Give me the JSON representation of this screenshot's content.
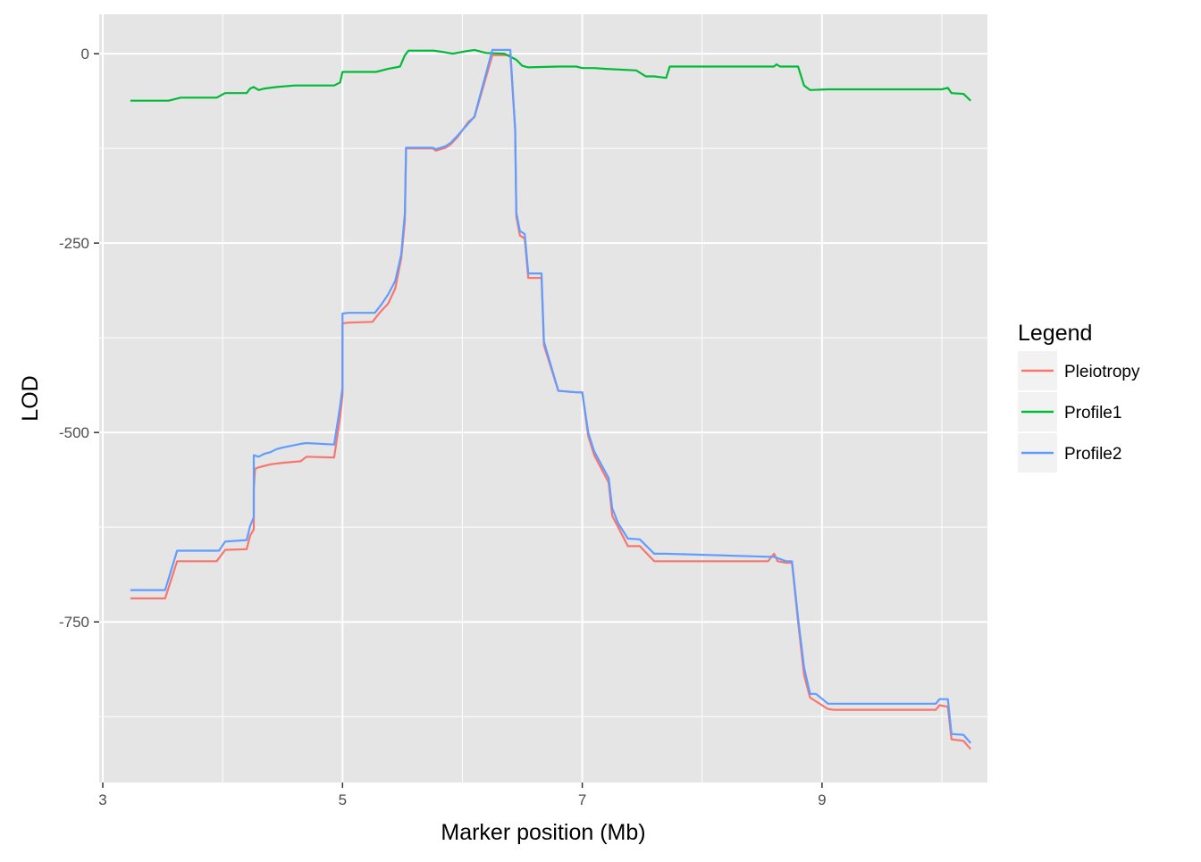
{
  "chart_data": {
    "type": "line",
    "title": "",
    "xlabel": "Marker position (Mb)",
    "ylabel": "LOD",
    "xlim": [
      2.97,
      10.38
    ],
    "ylim": [
      -962,
      52
    ],
    "x_ticks": [
      3,
      5,
      7,
      9
    ],
    "x_tick_labels": [
      "3",
      "5",
      "7",
      "9"
    ],
    "x_minor_ticks": [
      4,
      6,
      8,
      10
    ],
    "y_ticks": [
      0,
      -250,
      -500,
      -750
    ],
    "y_tick_labels": [
      "0",
      "-250",
      "-500",
      "-750"
    ],
    "y_minor_ticks": [
      -125,
      -375,
      -625,
      -875
    ],
    "grid": true,
    "legend": {
      "title": "Legend",
      "position": "right"
    },
    "colors": {
      "panel": "#e5e5e5",
      "grid": "#ffffff",
      "tick_text": "#4d4d4d"
    },
    "series": [
      {
        "name": "Pleiotropy",
        "color": "#f8766d",
        "points": [
          [
            3.23,
            -719
          ],
          [
            3.52,
            -719
          ],
          [
            3.62,
            -670
          ],
          [
            3.95,
            -670
          ],
          [
            4.02,
            -655
          ],
          [
            4.2,
            -654
          ],
          [
            4.23,
            -636
          ],
          [
            4.26,
            -628
          ],
          [
            4.26,
            -575
          ],
          [
            4.27,
            -548
          ],
          [
            4.3,
            -546
          ],
          [
            4.35,
            -544
          ],
          [
            4.4,
            -542
          ],
          [
            4.5,
            -540
          ],
          [
            4.65,
            -538
          ],
          [
            4.7,
            -532
          ],
          [
            4.93,
            -533
          ],
          [
            4.98,
            -480
          ],
          [
            5.0,
            -450
          ],
          [
            5.0,
            -356
          ],
          [
            5.05,
            -355
          ],
          [
            5.25,
            -354
          ],
          [
            5.32,
            -340
          ],
          [
            5.38,
            -330
          ],
          [
            5.44,
            -310
          ],
          [
            5.49,
            -270
          ],
          [
            5.52,
            -220
          ],
          [
            5.53,
            -125
          ],
          [
            5.75,
            -125
          ],
          [
            5.78,
            -128
          ],
          [
            5.86,
            -124
          ],
          [
            5.9,
            -120
          ],
          [
            5.96,
            -110
          ],
          [
            6.05,
            -90
          ],
          [
            6.1,
            -84
          ],
          [
            6.25,
            -2
          ],
          [
            6.4,
            -2
          ],
          [
            6.44,
            -100
          ],
          [
            6.45,
            -215
          ],
          [
            6.48,
            -240
          ],
          [
            6.52,
            -244
          ],
          [
            6.55,
            -296
          ],
          [
            6.66,
            -296
          ],
          [
            6.68,
            -385
          ],
          [
            6.8,
            -445
          ],
          [
            6.95,
            -447
          ],
          [
            7.0,
            -447
          ],
          [
            7.05,
            -505
          ],
          [
            7.1,
            -530
          ],
          [
            7.22,
            -566
          ],
          [
            7.25,
            -610
          ],
          [
            7.3,
            -625
          ],
          [
            7.38,
            -650
          ],
          [
            7.48,
            -650
          ],
          [
            7.6,
            -670
          ],
          [
            7.7,
            -670
          ],
          [
            8.55,
            -670
          ],
          [
            8.6,
            -660
          ],
          [
            8.63,
            -670
          ],
          [
            8.7,
            -672
          ],
          [
            8.75,
            -672
          ],
          [
            8.8,
            -750
          ],
          [
            8.85,
            -820
          ],
          [
            8.9,
            -850
          ],
          [
            9.05,
            -865
          ],
          [
            9.1,
            -866
          ],
          [
            9.95,
            -866
          ],
          [
            9.98,
            -860
          ],
          [
            10.05,
            -862
          ],
          [
            10.08,
            -905
          ],
          [
            10.18,
            -907
          ],
          [
            10.24,
            -918
          ]
        ]
      },
      {
        "name": "Profile1",
        "color": "#00ba38",
        "points": [
          [
            3.23,
            -62
          ],
          [
            3.55,
            -62
          ],
          [
            3.65,
            -58
          ],
          [
            3.95,
            -58
          ],
          [
            4.02,
            -52
          ],
          [
            4.2,
            -52
          ],
          [
            4.23,
            -46
          ],
          [
            4.26,
            -44
          ],
          [
            4.3,
            -48
          ],
          [
            4.35,
            -46
          ],
          [
            4.45,
            -44
          ],
          [
            4.6,
            -42
          ],
          [
            4.93,
            -42
          ],
          [
            4.98,
            -38
          ],
          [
            5.0,
            -24
          ],
          [
            5.05,
            -24
          ],
          [
            5.28,
            -24
          ],
          [
            5.38,
            -20
          ],
          [
            5.48,
            -17
          ],
          [
            5.52,
            -2
          ],
          [
            5.55,
            4
          ],
          [
            5.76,
            4
          ],
          [
            5.85,
            2
          ],
          [
            5.92,
            0
          ],
          [
            6.02,
            3
          ],
          [
            6.1,
            5
          ],
          [
            6.2,
            1
          ],
          [
            6.35,
            0
          ],
          [
            6.45,
            -8
          ],
          [
            6.5,
            -16
          ],
          [
            6.55,
            -18
          ],
          [
            6.8,
            -17
          ],
          [
            6.95,
            -17
          ],
          [
            7.0,
            -19
          ],
          [
            7.1,
            -19
          ],
          [
            7.2,
            -20
          ],
          [
            7.45,
            -22
          ],
          [
            7.53,
            -30
          ],
          [
            7.6,
            -30
          ],
          [
            7.7,
            -32
          ],
          [
            7.73,
            -17
          ],
          [
            8.6,
            -17
          ],
          [
            8.62,
            -14
          ],
          [
            8.65,
            -17
          ],
          [
            8.8,
            -17
          ],
          [
            8.85,
            -42
          ],
          [
            8.9,
            -48
          ],
          [
            9.05,
            -47
          ],
          [
            9.1,
            -47
          ],
          [
            10.0,
            -47
          ],
          [
            10.05,
            -45
          ],
          [
            10.08,
            -52
          ],
          [
            10.18,
            -53
          ],
          [
            10.24,
            -62
          ]
        ]
      },
      {
        "name": "Profile2",
        "color": "#619cff",
        "points": [
          [
            3.23,
            -708
          ],
          [
            3.52,
            -708
          ],
          [
            3.62,
            -656
          ],
          [
            3.97,
            -656
          ],
          [
            4.02,
            -644
          ],
          [
            4.2,
            -642
          ],
          [
            4.23,
            -623
          ],
          [
            4.26,
            -612
          ],
          [
            4.26,
            -530
          ],
          [
            4.3,
            -532
          ],
          [
            4.35,
            -528
          ],
          [
            4.4,
            -526
          ],
          [
            4.45,
            -522
          ],
          [
            4.5,
            -520
          ],
          [
            4.65,
            -515
          ],
          [
            4.7,
            -514
          ],
          [
            4.93,
            -516
          ],
          [
            4.98,
            -465
          ],
          [
            5.0,
            -440
          ],
          [
            5.0,
            -343
          ],
          [
            5.05,
            -342
          ],
          [
            5.27,
            -342
          ],
          [
            5.32,
            -332
          ],
          [
            5.38,
            -318
          ],
          [
            5.44,
            -300
          ],
          [
            5.49,
            -265
          ],
          [
            5.52,
            -210
          ],
          [
            5.53,
            -124
          ],
          [
            5.75,
            -124
          ],
          [
            5.78,
            -126
          ],
          [
            5.86,
            -122
          ],
          [
            5.9,
            -118
          ],
          [
            5.96,
            -108
          ],
          [
            6.05,
            -92
          ],
          [
            6.1,
            -83
          ],
          [
            6.25,
            5
          ],
          [
            6.4,
            5
          ],
          [
            6.44,
            -100
          ],
          [
            6.45,
            -210
          ],
          [
            6.48,
            -234
          ],
          [
            6.52,
            -238
          ],
          [
            6.55,
            -290
          ],
          [
            6.66,
            -290
          ],
          [
            6.68,
            -380
          ],
          [
            6.8,
            -445
          ],
          [
            6.95,
            -447
          ],
          [
            7.0,
            -447
          ],
          [
            7.05,
            -500
          ],
          [
            7.1,
            -525
          ],
          [
            7.22,
            -560
          ],
          [
            7.25,
            -600
          ],
          [
            7.3,
            -620
          ],
          [
            7.38,
            -640
          ],
          [
            7.48,
            -641
          ],
          [
            7.6,
            -660
          ],
          [
            7.7,
            -660
          ],
          [
            8.55,
            -664
          ],
          [
            8.6,
            -664
          ],
          [
            8.7,
            -670
          ],
          [
            8.75,
            -670
          ],
          [
            8.8,
            -745
          ],
          [
            8.85,
            -810
          ],
          [
            8.9,
            -845
          ],
          [
            8.95,
            -845
          ],
          [
            9.05,
            -858
          ],
          [
            9.1,
            -858
          ],
          [
            9.95,
            -858
          ],
          [
            9.98,
            -852
          ],
          [
            10.05,
            -852
          ],
          [
            10.08,
            -898
          ],
          [
            10.18,
            -899
          ],
          [
            10.24,
            -910
          ]
        ]
      }
    ]
  }
}
